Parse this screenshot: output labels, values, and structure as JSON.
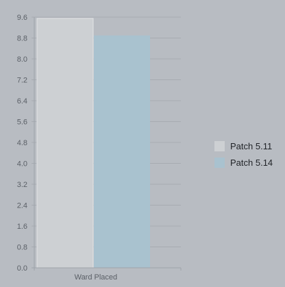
{
  "chart_data": {
    "type": "bar",
    "categories": [
      "Ward Placed"
    ],
    "series": [
      {
        "name": "Patch 5.11",
        "values": [
          9.55
        ],
        "color": "#cdd0d3"
      },
      {
        "name": "Patch 5.14",
        "values": [
          8.9
        ],
        "color": "#a9c2cf"
      }
    ],
    "ylim": [
      0,
      9.6
    ],
    "yticks": [
      "0.0",
      "0.8",
      "1.6",
      "2.4",
      "3.2",
      "4.0",
      "4.8",
      "5.6",
      "6.4",
      "7.2",
      "8.0",
      "8.8",
      "9.6"
    ],
    "grid": true,
    "legend_position": "right"
  }
}
